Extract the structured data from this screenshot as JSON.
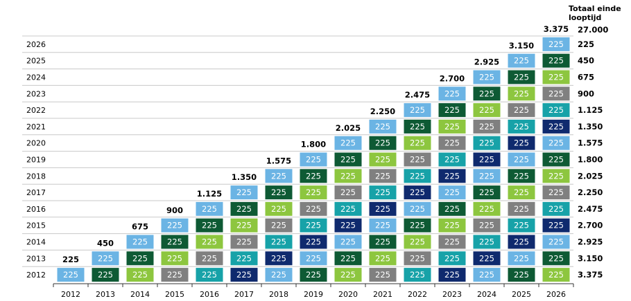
{
  "chart_data": {
    "type": "bar",
    "stacked": true,
    "title": "",
    "xlabel": "",
    "ylabel": "",
    "categories": [
      "2012",
      "2013",
      "2014",
      "2015",
      "2016",
      "2017",
      "2018",
      "2019",
      "2020",
      "2021",
      "2022",
      "2023",
      "2024",
      "2025",
      "2026"
    ],
    "row_labels": [
      "2026",
      "2025",
      "2024",
      "2023",
      "2022",
      "2021",
      "2020",
      "2019",
      "2018",
      "2017",
      "2016",
      "2015",
      "2014",
      "2013",
      "2012"
    ],
    "tranche_value": 225,
    "tranche_label": "225",
    "totals": [
      "225",
      "450",
      "675",
      "900",
      "1.125",
      "1.350",
      "1.575",
      "1.800",
      "2.025",
      "2.250",
      "2.475",
      "2.700",
      "2.925",
      "3.150",
      "3.375"
    ],
    "total_values": [
      225,
      450,
      675,
      900,
      1125,
      1350,
      1575,
      1800,
      2025,
      2250,
      2475,
      2700,
      2925,
      3150,
      3375
    ],
    "right_header": [
      "Totaal einde",
      "looptijd"
    ],
    "right_header_total": "27.000",
    "right_column_values": [
      "225",
      "450",
      "675",
      "900",
      "1.125",
      "1.350",
      "1.575",
      "1.800",
      "2.025",
      "2.250",
      "2.475",
      "2.700",
      "2.925",
      "3.150",
      "3.375"
    ],
    "color_cycle": [
      "#6bb4e4",
      "#0e5a34",
      "#8dc63f",
      "#808080",
      "#17a2a8",
      "#0f2a6e"
    ]
  }
}
